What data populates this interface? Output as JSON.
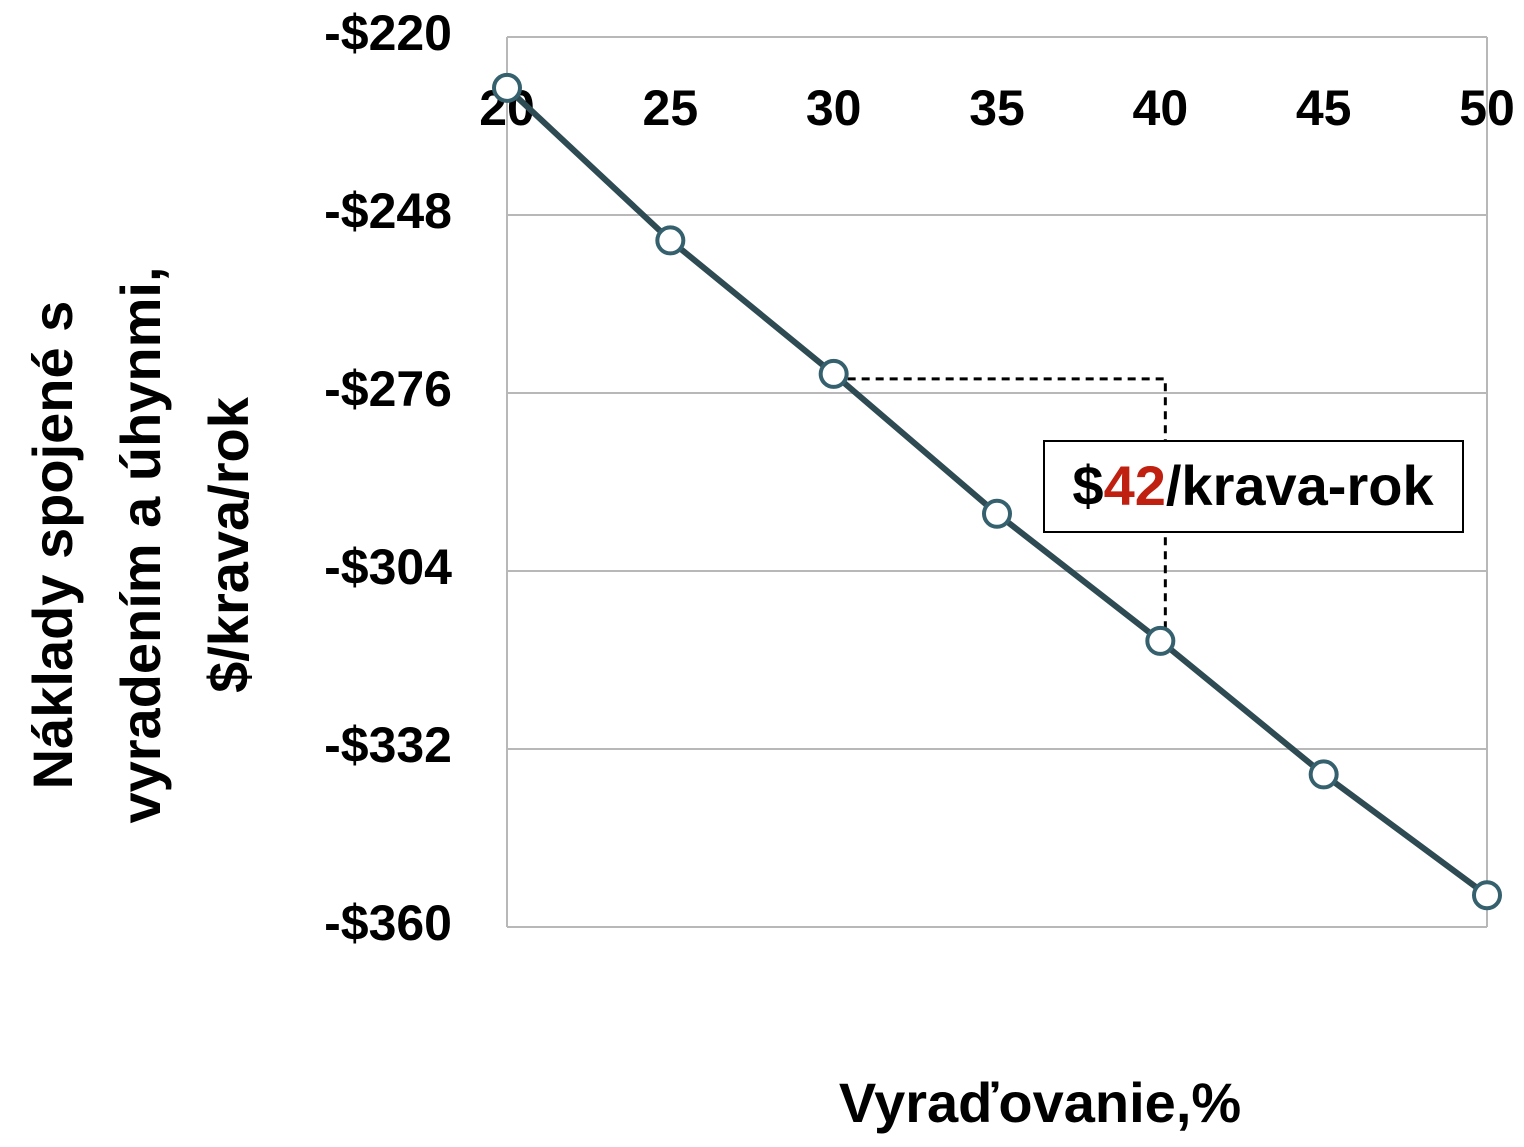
{
  "chart_data": {
    "type": "line",
    "x_label": "Vyraďovanie,%",
    "y_label": [
      "Náklady spojené s",
      "vyradením a úhynmi,",
      "$/krava/rok"
    ],
    "x": [
      20,
      25,
      30,
      35,
      40,
      45,
      50
    ],
    "series": [
      {
        "name": "Náklady",
        "color": "#2e4a52",
        "marker_color": "#35606e",
        "values": [
          -228,
          -252,
          -273,
          -295,
          -315,
          -336,
          -355
        ]
      }
    ],
    "xlim": [
      20,
      50
    ],
    "xticks": [
      20,
      25,
      30,
      35,
      40,
      45,
      50
    ],
    "ylim": [
      -360,
      -220
    ],
    "yticks": [
      {
        "value": -220,
        "label": "-$220"
      },
      {
        "value": -248,
        "label": "-$248"
      },
      {
        "value": -276,
        "label": "-$276"
      },
      {
        "value": -304,
        "label": "-$304"
      },
      {
        "value": -332,
        "label": "-$332"
      },
      {
        "value": -360,
        "label": "-$360"
      }
    ],
    "grid": true,
    "annotation": {
      "parts": [
        "$",
        "42",
        "/krava-rok"
      ],
      "colors": [
        "#000000",
        "#c0200f",
        "#000000"
      ]
    }
  }
}
